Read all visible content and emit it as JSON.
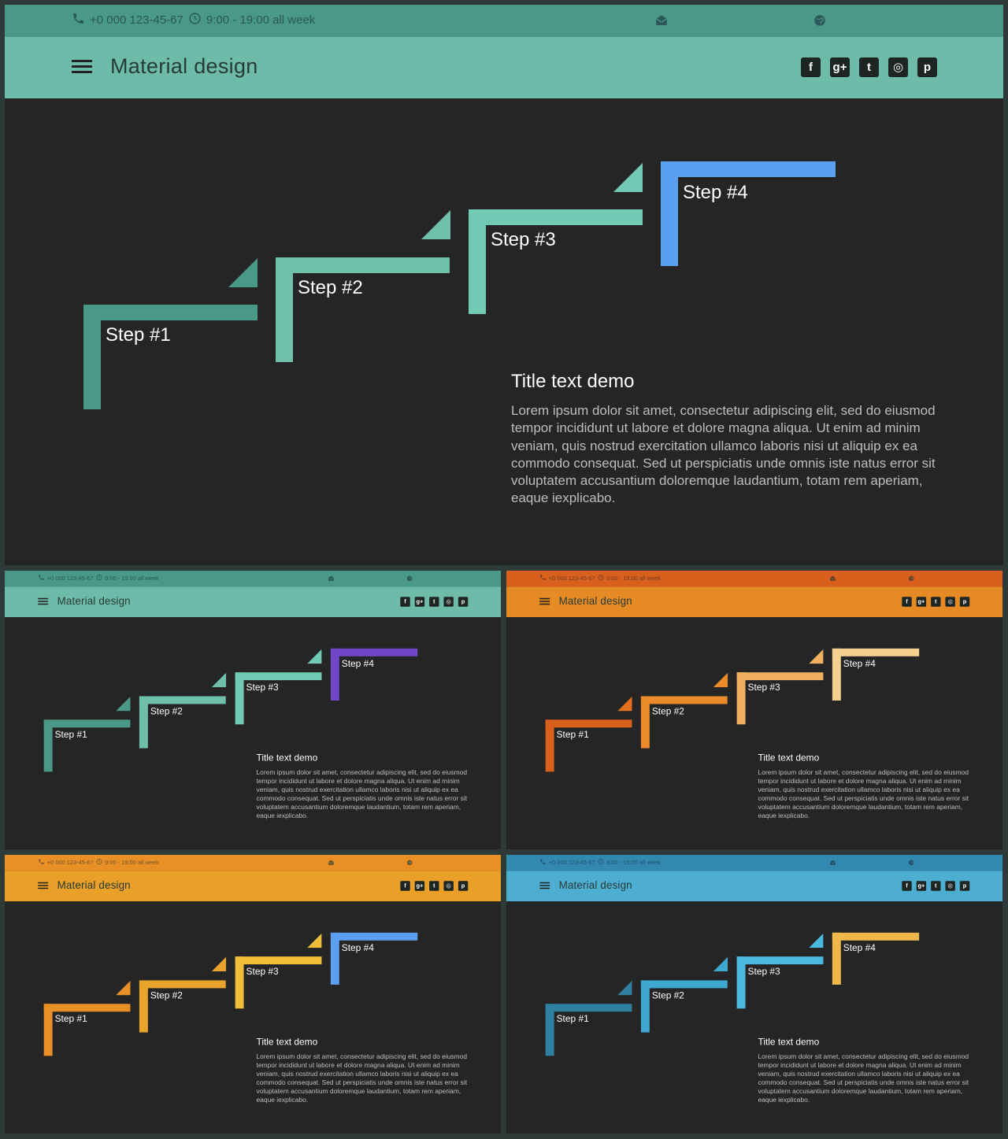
{
  "topbar": {
    "phone": "+0 000 123-45-67",
    "hours": "9:00 - 19:00 all week",
    "icons": [
      "phone-icon",
      "clock-icon",
      "mail-icon",
      "globe-icon"
    ]
  },
  "navbar": {
    "brand": "Material design",
    "social": [
      {
        "icon": "facebook-icon",
        "glyph": "f"
      },
      {
        "icon": "google-plus-icon",
        "glyph": "g+"
      },
      {
        "icon": "twitter-icon",
        "glyph": "t"
      },
      {
        "icon": "instagram-icon",
        "glyph": "◎"
      },
      {
        "icon": "pinterest-icon",
        "glyph": "p"
      }
    ]
  },
  "steps": [
    "Step #1",
    "Step #2",
    "Step #3",
    "Step #4"
  ],
  "text_block": {
    "title": "Title text demo",
    "body": "Lorem ipsum dolor sit amet, consectetur adipiscing elit, sed do eiusmod tempor incididunt ut labore et dolore magna aliqua. Ut enim ad minim veniam, quis nostrud exercitation ullamco laboris nisi ut aliquip ex ea commodo consequat. Sed ut perspiciatis unde omnis iste natus error sit voluptatem accusantium doloremque laudantium, totam rem aperiam, eaque iexplicabo."
  },
  "themes": [
    {
      "topbar": "#4a9888",
      "navbar": "#6fbba9",
      "steps": [
        "#4a9888",
        "#6fc0ab",
        "#72c9b4",
        "#5b9ff0"
      ],
      "tris": [
        "#4a9888",
        "#6fc0ab",
        "#72c9b4"
      ]
    },
    {
      "topbar": "#4a9888",
      "navbar": "#6fbba9",
      "steps": [
        "#4a9888",
        "#6fc0ab",
        "#72c9b4",
        "#7047c8"
      ],
      "tris": [
        "#4a9888",
        "#6fc0ab",
        "#72c9b4"
      ]
    },
    {
      "topbar": "#d95f1d",
      "navbar": "#e58a24",
      "steps": [
        "#d95f1d",
        "#ea8a28",
        "#f0b060",
        "#f6d08e"
      ],
      "tris": [
        "#e3701f",
        "#ea8a28",
        "#f0b060"
      ]
    },
    {
      "topbar": "#e88f26",
      "navbar": "#eaa028",
      "steps": [
        "#e88f26",
        "#eaa42c",
        "#f0bd38",
        "#5b9ff0"
      ],
      "tris": [
        "#e88f26",
        "#eaa42c",
        "#f0bd38"
      ]
    },
    {
      "topbar": "#3388b0",
      "navbar": "#4daed2",
      "steps": [
        "#2f7fa0",
        "#3ea8d0",
        "#4bb8e0",
        "#f0b84a"
      ],
      "tris": [
        "#2f7fa0",
        "#3ea8d0",
        "#4bb8e0"
      ]
    }
  ]
}
